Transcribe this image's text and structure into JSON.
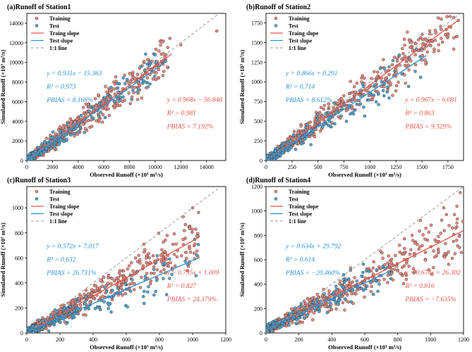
{
  "legend_labels": [
    "Training",
    "Test",
    "Traing slope",
    "Test slope",
    "1:1 line"
  ],
  "colors": {
    "training_fill": "#f08a7e",
    "test_fill": "#4fa8d8",
    "marker_edge": "#333333",
    "train_line": "#e8534a",
    "test_line": "#2a93d5",
    "one_to_one": "#999999",
    "train_text": "#e8534a",
    "test_text": "#2a93d5"
  },
  "chart_data": [
    {
      "type": "scatter",
      "title": "(a)Runoff of Station1",
      "xlabel": "Observed Runoff (×10³ m³/s)",
      "ylabel": "Simulated Runoff (×10³ m³/s)",
      "xlim": [
        0,
        15500
      ],
      "ylim": [
        0,
        15000
      ],
      "xticks": [
        0,
        2000,
        4000,
        6000,
        8000,
        10000,
        12000,
        14000
      ],
      "yticks": [
        0,
        2000,
        4000,
        6000,
        8000,
        10000,
        12000,
        14000
      ],
      "train_fit": {
        "slope": 0.968,
        "intercept": -56.848,
        "xmax": 11300
      },
      "test_fit": {
        "slope": 0.931,
        "intercept": -15.363,
        "xmax": 10800
      },
      "test_eq": [
        "y = 0.931x − 15.363",
        "R² = 0.973",
        "PBIAS = 8.166%"
      ],
      "train_eq": [
        "y = 0.968x − 56.848",
        "R² = 0.981",
        "PBIAS = 7.192%"
      ],
      "sample_train": [
        [
          500,
          470
        ],
        [
          1200,
          1150
        ],
        [
          2000,
          1950
        ],
        [
          3000,
          2900
        ],
        [
          4000,
          3850
        ],
        [
          5000,
          4900
        ],
        [
          6000,
          5800
        ],
        [
          7500,
          7300
        ],
        [
          9000,
          8700
        ],
        [
          10500,
          10100
        ],
        [
          12000,
          11800
        ],
        [
          14800,
          13200
        ]
      ],
      "sample_test": [
        [
          400,
          380
        ],
        [
          1000,
          950
        ],
        [
          1800,
          1700
        ],
        [
          2600,
          2450
        ],
        [
          3500,
          3250
        ],
        [
          4500,
          4200
        ],
        [
          5500,
          5100
        ],
        [
          7000,
          6500
        ],
        [
          8500,
          8000
        ],
        [
          10800,
          10100
        ]
      ]
    },
    {
      "type": "scatter",
      "title": "(b)Runoff of Station2",
      "xlabel": "Observed Runoff (×10³ m³/s)",
      "ylabel": "Simulated Runoff (×10³ m³/s)",
      "xlim": [
        0,
        1900
      ],
      "ylim": [
        0,
        1870
      ],
      "xticks": [
        0,
        250,
        500,
        750,
        1000,
        1250,
        1500,
        1750
      ],
      "yticks": [
        0,
        250,
        500,
        750,
        1000,
        1250,
        1500,
        1750
      ],
      "train_fit": {
        "slope": 0.967,
        "intercept": -6.081,
        "xmax": 1850
      },
      "test_fit": {
        "slope": 0.866,
        "intercept": 0.291,
        "xmax": 1540
      },
      "test_eq": [
        "y = 0.866x + 0.291",
        "R² = 0.714",
        "PBIAS = 8.612%"
      ],
      "train_eq": [
        "y = 0.967x − 6.081",
        "R² = 0.863",
        "PBIAS = 9.329%"
      ],
      "sample_train": [
        [
          50,
          45
        ],
        [
          120,
          110
        ],
        [
          200,
          190
        ],
        [
          300,
          280
        ],
        [
          400,
          420
        ],
        [
          500,
          480
        ],
        [
          650,
          600
        ],
        [
          800,
          850
        ],
        [
          1000,
          950
        ],
        [
          1250,
          1150
        ],
        [
          1500,
          1400
        ],
        [
          1850,
          1780
        ]
      ],
      "sample_test": [
        [
          40,
          35
        ],
        [
          100,
          90
        ],
        [
          180,
          160
        ],
        [
          260,
          230
        ],
        [
          350,
          300
        ],
        [
          450,
          380
        ],
        [
          600,
          520
        ],
        [
          800,
          700
        ],
        [
          1000,
          850
        ]
      ]
    },
    {
      "type": "scatter",
      "title": "(c)Runoff of Station3",
      "xlabel": "Observed Runoff (×10³ m³/s)",
      "ylabel": "Simulated Runoff (×10³ m³/s)",
      "xlim": [
        0,
        1200
      ],
      "ylim": [
        0,
        1170
      ],
      "xticks": [
        0,
        200,
        400,
        600,
        800,
        1000,
        1200
      ],
      "yticks": [
        0,
        200,
        400,
        600,
        800,
        1000
      ],
      "train_fit": {
        "slope": 0.735,
        "intercept": 1.009,
        "xmax": 1040
      },
      "test_fit": {
        "slope": 0.572,
        "intercept": 7.017,
        "xmax": 1040
      },
      "test_eq": [
        "y = 0.572x + 7.017",
        "R² = 0.632",
        "PBIAS = 26.731%"
      ],
      "train_eq": [
        "y = 0.735x + 1.009",
        "R² = 0.827",
        "PBIAS = 24.379%"
      ],
      "sample_train": [
        [
          20,
          18
        ],
        [
          60,
          50
        ],
        [
          100,
          80
        ],
        [
          150,
          110
        ],
        [
          200,
          150
        ],
        [
          300,
          220
        ],
        [
          400,
          290
        ],
        [
          550,
          400
        ],
        [
          700,
          520
        ],
        [
          850,
          620
        ],
        [
          1000,
          1000
        ]
      ],
      "sample_test": [
        [
          20,
          20
        ],
        [
          50,
          40
        ],
        [
          90,
          60
        ],
        [
          140,
          90
        ],
        [
          200,
          120
        ],
        [
          300,
          180
        ],
        [
          450,
          260
        ],
        [
          600,
          350
        ]
      ]
    },
    {
      "type": "scatter",
      "title": "(d)Runoff of Station4",
      "xlabel": "Observed Runoff (×10³ m³/s)",
      "ylabel": "Simulated Runoff (×10³ m³/s)",
      "xlim": [
        0,
        1200
      ],
      "ylim": [
        0,
        1200
      ],
      "xticks": [
        0,
        200,
        400,
        600,
        800,
        1000,
        1200
      ],
      "yticks": [
        0,
        200,
        400,
        600,
        800,
        1000,
        1200
      ],
      "train_fit": {
        "slope": 0.678,
        "intercept": 26.302,
        "xmax": 1200
      },
      "test_fit": {
        "slope": 0.634,
        "intercept": 29.792,
        "xmax": 760
      },
      "test_eq": [
        "y = 0.634x + 29.792",
        "R² = 0.614",
        "PBIAS = −20.460%"
      ],
      "train_eq": [
        "y = 0.678x + 26.302",
        "R² = 0.816",
        "PBIAS = −7.635%"
      ],
      "sample_train": [
        [
          30,
          40
        ],
        [
          80,
          90
        ],
        [
          150,
          140
        ],
        [
          250,
          210
        ],
        [
          350,
          280
        ],
        [
          450,
          350
        ],
        [
          600,
          430
        ],
        [
          750,
          540
        ],
        [
          900,
          650
        ],
        [
          1050,
          750
        ],
        [
          1180,
          1150
        ]
      ],
      "sample_test": [
        [
          30,
          45
        ],
        [
          70,
          80
        ],
        [
          130,
          120
        ],
        [
          200,
          170
        ],
        [
          300,
          230
        ],
        [
          420,
          300
        ],
        [
          550,
          380
        ],
        [
          700,
          470
        ]
      ]
    }
  ]
}
